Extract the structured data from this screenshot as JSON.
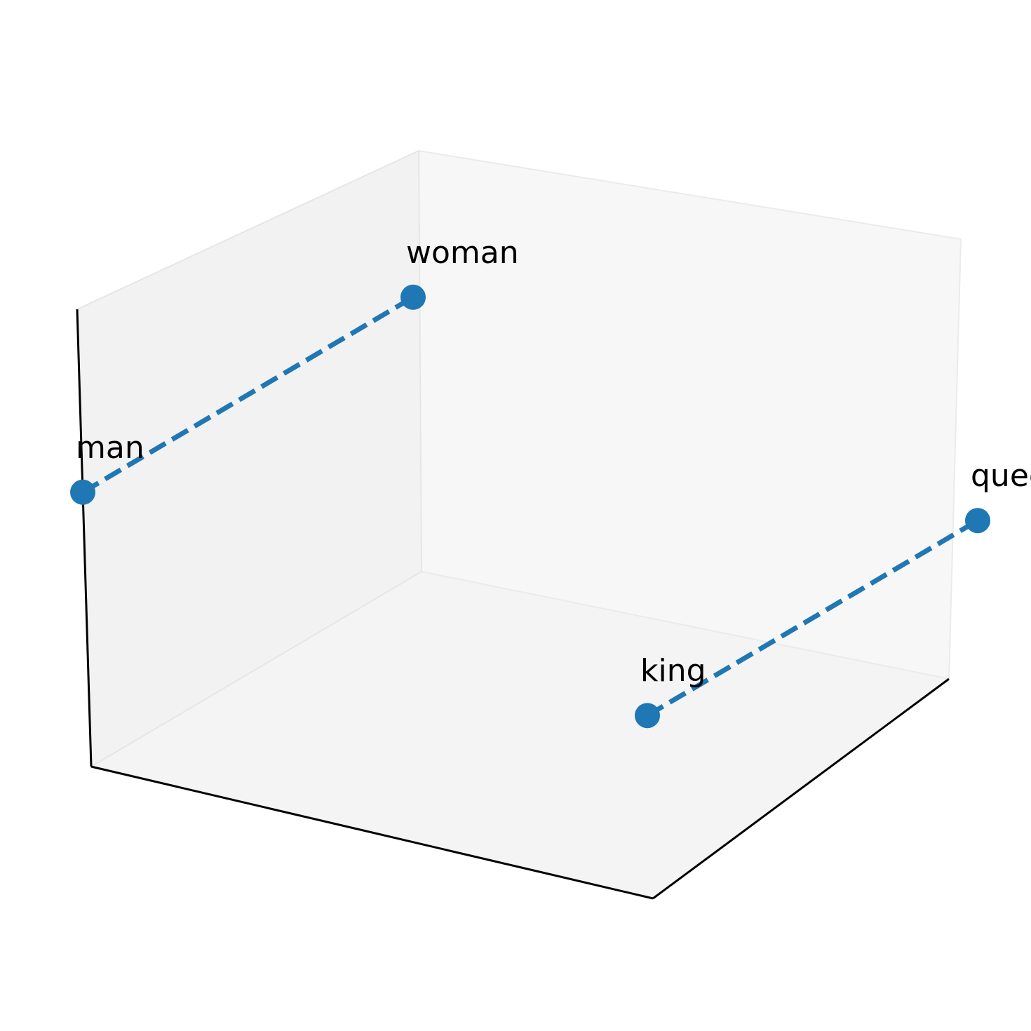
{
  "chart_data": {
    "type": "scatter",
    "projection": "3d",
    "title": "",
    "xlabel": "",
    "ylabel": "",
    "zlabel": "",
    "ticks_visible": false,
    "grid": false,
    "colors": {
      "series": "#1f77b4",
      "pane_left": "#f2f2f2",
      "pane_back": "#f7f7f7",
      "pane_floor": "#f4f4f4",
      "axis": "#000000"
    },
    "points": [
      {
        "label": "man",
        "x": 0.0,
        "y": 0.0,
        "z": 0.6
      },
      {
        "label": "woman",
        "x": 0.0,
        "y": 1.0,
        "z": 0.6
      },
      {
        "label": "king",
        "x": 1.0,
        "y": 0.0,
        "z": 0.4
      },
      {
        "label": "queen",
        "x": 1.0,
        "y": 1.0,
        "z": 0.4
      }
    ],
    "segments": [
      {
        "from": "man",
        "to": "woman",
        "style": "dashed"
      },
      {
        "from": "king",
        "to": "queen",
        "style": "dashed"
      }
    ]
  }
}
